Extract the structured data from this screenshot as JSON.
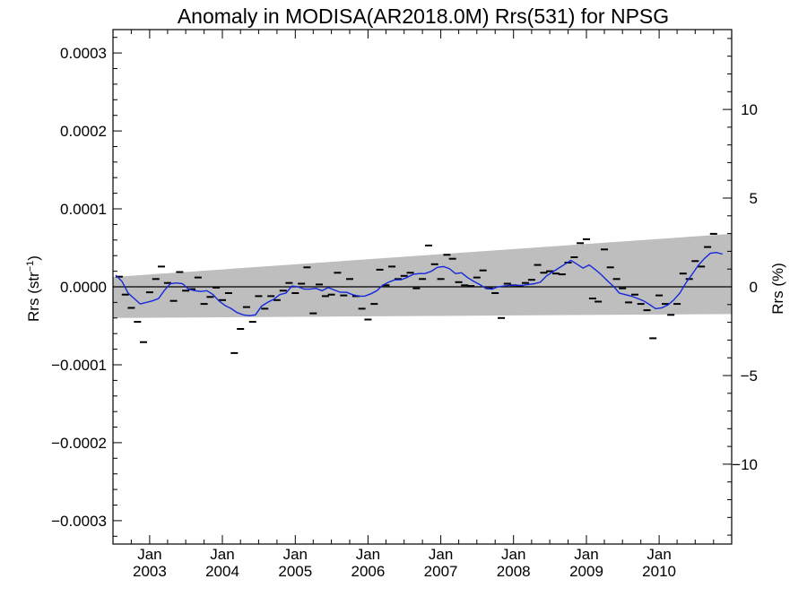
{
  "chart_data": {
    "type": "scatter",
    "title": "Anomaly in MODISA(AR2018.0M) Rrs(531) for NPSG",
    "ylabel_left_main": "Rrs (str",
    "ylabel_left_sup": "−1",
    "ylabel_left_close": ")",
    "ylabel_right": "Rrs (%)",
    "x_range": [
      "2002-07-01",
      "2010-12-31"
    ],
    "ylim_left": [
      -0.00033,
      0.00033
    ],
    "ylim_right": [
      -14.5,
      14.5
    ],
    "x_ticks": [
      {
        "date": "2003-01-01",
        "month": "Jan",
        "year": "2003"
      },
      {
        "date": "2004-01-01",
        "month": "Jan",
        "year": "2004"
      },
      {
        "date": "2005-01-01",
        "month": "Jan",
        "year": "2005"
      },
      {
        "date": "2006-01-01",
        "month": "Jan",
        "year": "2006"
      },
      {
        "date": "2007-01-01",
        "month": "Jan",
        "year": "2007"
      },
      {
        "date": "2008-01-01",
        "month": "Jan",
        "year": "2008"
      },
      {
        "date": "2009-01-01",
        "month": "Jan",
        "year": "2009"
      },
      {
        "date": "2010-01-01",
        "month": "Jan",
        "year": "2010"
      }
    ],
    "y_ticks_left": [
      {
        "value": 0.0003,
        "label": "0.0003"
      },
      {
        "value": 0.0002,
        "label": "0.0002"
      },
      {
        "value": 0.0001,
        "label": "0.0001"
      },
      {
        "value": 0.0,
        "label": "0.0000"
      },
      {
        "value": -0.0001,
        "label": "−0.0001"
      },
      {
        "value": -0.0002,
        "label": "−0.0002"
      },
      {
        "value": -0.0003,
        "label": "−0.0003"
      }
    ],
    "y_ticks_right": [
      {
        "value": 10,
        "label": "10"
      },
      {
        "value": 5,
        "label": "5"
      },
      {
        "value": 0,
        "label": "0"
      },
      {
        "value": -5,
        "label": "−5"
      },
      {
        "value": -10,
        "label": "−10"
      }
    ],
    "uncertainty_band": {
      "start": {
        "date": "2002-07-01",
        "upper": 1.25e-05,
        "lower": -4e-05
      },
      "end": {
        "date": "2010-12-31",
        "upper": 6.8e-05,
        "lower": -3.5e-05
      },
      "color": "#bebebe"
    },
    "zero_line": 0.0,
    "series": [
      {
        "kind": "monthly anomaly",
        "marker": "dash",
        "color": "#000000",
        "points": [
          [
            "2002-08-01",
            1.3e-05
          ],
          [
            "2002-09-01",
            -1e-05
          ],
          [
            "2002-10-01",
            -2.7e-05
          ],
          [
            "2002-11-01",
            -4.5e-05
          ],
          [
            "2002-12-01",
            -7.1e-05
          ],
          [
            "2003-01-01",
            -7e-06
          ],
          [
            "2003-02-01",
            1e-05
          ],
          [
            "2003-03-01",
            2.6e-05
          ],
          [
            "2003-04-01",
            5e-06
          ],
          [
            "2003-05-01",
            -1.8e-05
          ],
          [
            "2003-06-01",
            1.9e-05
          ],
          [
            "2003-07-01",
            -5e-06
          ],
          [
            "2003-08-01",
            -3e-06
          ],
          [
            "2003-09-01",
            1.2e-05
          ],
          [
            "2003-10-01",
            -2.2e-05
          ],
          [
            "2003-11-01",
            -1.3e-05
          ],
          [
            "2003-12-01",
            -1e-06
          ],
          [
            "2004-01-01",
            -1.7e-05
          ],
          [
            "2004-02-01",
            -8e-06
          ],
          [
            "2004-03-01",
            -8.5e-05
          ],
          [
            "2004-04-01",
            -5.4e-05
          ],
          [
            "2004-05-01",
            -2.6e-05
          ],
          [
            "2004-06-01",
            -4.5e-05
          ],
          [
            "2004-07-01",
            -1.2e-05
          ],
          [
            "2004-08-01",
            -2.8e-05
          ],
          [
            "2004-09-01",
            -1.2e-05
          ],
          [
            "2004-10-01",
            -1.7e-05
          ],
          [
            "2004-11-01",
            -5e-06
          ],
          [
            "2004-12-01",
            5e-06
          ],
          [
            "2005-01-01",
            -8e-06
          ],
          [
            "2005-02-01",
            4e-06
          ],
          [
            "2005-03-01",
            2.5e-05
          ],
          [
            "2005-04-01",
            -3.4e-05
          ],
          [
            "2005-05-01",
            3e-06
          ],
          [
            "2005-06-01",
            -1.2e-05
          ],
          [
            "2005-07-01",
            -1e-05
          ],
          [
            "2005-08-01",
            1.8e-05
          ],
          [
            "2005-09-01",
            -1.1e-05
          ],
          [
            "2005-10-01",
            1e-05
          ],
          [
            "2005-11-01",
            -1.2e-05
          ],
          [
            "2005-12-01",
            -2.8e-05
          ],
          [
            "2006-01-01",
            -4.2e-05
          ],
          [
            "2006-02-01",
            -2.2e-05
          ],
          [
            "2006-03-01",
            2.2e-05
          ],
          [
            "2006-04-01",
            2e-06
          ],
          [
            "2006-05-01",
            2.6e-05
          ],
          [
            "2006-06-01",
            1e-05
          ],
          [
            "2006-07-01",
            1.4e-05
          ],
          [
            "2006-08-01",
            1.8e-05
          ],
          [
            "2006-09-01",
            -2e-06
          ],
          [
            "2006-10-01",
            1e-05
          ],
          [
            "2006-11-01",
            5.3e-05
          ],
          [
            "2006-12-01",
            2.9e-05
          ],
          [
            "2007-01-01",
            1e-05
          ],
          [
            "2007-02-01",
            4.1e-05
          ],
          [
            "2007-03-01",
            3.6e-05
          ],
          [
            "2007-04-01",
            6e-06
          ],
          [
            "2007-05-01",
            2e-06
          ],
          [
            "2007-06-01",
            1e-06
          ],
          [
            "2007-07-01",
            1.2e-05
          ],
          [
            "2007-08-01",
            2.1e-05
          ],
          [
            "2007-09-01",
            -2e-06
          ],
          [
            "2007-10-01",
            -8e-06
          ],
          [
            "2007-11-01",
            -4e-05
          ],
          [
            "2007-12-01",
            4e-06
          ],
          [
            "2008-01-01",
            2e-06
          ],
          [
            "2008-02-01",
            1e-06
          ],
          [
            "2008-03-01",
            5e-06
          ],
          [
            "2008-04-01",
            9e-06
          ],
          [
            "2008-05-01",
            2.8e-05
          ],
          [
            "2008-06-01",
            1.8e-05
          ],
          [
            "2008-07-01",
            2e-05
          ],
          [
            "2008-08-01",
            1.7e-05
          ],
          [
            "2008-09-01",
            1.6e-05
          ],
          [
            "2008-10-01",
            3.1e-05
          ],
          [
            "2008-11-01",
            3.8e-05
          ],
          [
            "2008-12-01",
            5.6e-05
          ],
          [
            "2009-01-01",
            6.1e-05
          ],
          [
            "2009-02-01",
            -1.5e-05
          ],
          [
            "2009-03-01",
            -1.9e-05
          ],
          [
            "2009-04-01",
            4.8e-05
          ],
          [
            "2009-05-01",
            2.5e-05
          ],
          [
            "2009-06-01",
            1e-05
          ],
          [
            "2009-07-01",
            -2e-06
          ],
          [
            "2009-08-01",
            -2e-05
          ],
          [
            "2009-09-01",
            -1e-05
          ],
          [
            "2009-10-01",
            -2.2e-05
          ],
          [
            "2009-11-01",
            -3e-05
          ],
          [
            "2009-12-01",
            -6.6e-05
          ],
          [
            "2010-01-01",
            -1.1e-05
          ],
          [
            "2010-02-01",
            -2.2e-05
          ],
          [
            "2010-03-01",
            -3.6e-05
          ],
          [
            "2010-04-01",
            -2.2e-05
          ],
          [
            "2010-05-01",
            1.7e-05
          ],
          [
            "2010-06-01",
            1e-05
          ],
          [
            "2010-07-01",
            3.3e-05
          ],
          [
            "2010-08-01",
            2.6e-05
          ],
          [
            "2010-09-01",
            5.1e-05
          ],
          [
            "2010-10-01",
            6.8e-05
          ]
        ]
      },
      {
        "kind": "smoothed anomaly",
        "marker": "line",
        "color": "#1428dc",
        "points": [
          [
            "2002-07-15",
            1.5e-05
          ],
          [
            "2002-08-15",
            7e-06
          ],
          [
            "2002-09-15",
            -8e-06
          ],
          [
            "2002-10-15",
            -1.5e-05
          ],
          [
            "2002-11-15",
            -2.2e-05
          ],
          [
            "2002-12-15",
            -2e-05
          ],
          [
            "2003-01-15",
            -1.8e-05
          ],
          [
            "2003-02-15",
            -1.5e-05
          ],
          [
            "2003-03-15",
            -5e-06
          ],
          [
            "2003-04-15",
            4e-06
          ],
          [
            "2003-05-15",
            5e-06
          ],
          [
            "2003-06-15",
            4e-06
          ],
          [
            "2003-07-15",
            -3e-06
          ],
          [
            "2003-08-15",
            -5e-06
          ],
          [
            "2003-09-15",
            -6e-06
          ],
          [
            "2003-10-15",
            -5e-06
          ],
          [
            "2003-11-15",
            -1e-05
          ],
          [
            "2003-12-15",
            -1.8e-05
          ],
          [
            "2004-01-15",
            -2.4e-05
          ],
          [
            "2004-02-15",
            -2.8e-05
          ],
          [
            "2004-03-15",
            -3.3e-05
          ],
          [
            "2004-04-15",
            -3.6e-05
          ],
          [
            "2004-05-15",
            -3.7e-05
          ],
          [
            "2004-06-15",
            -3.6e-05
          ],
          [
            "2004-07-15",
            -2.5e-05
          ],
          [
            "2004-08-15",
            -2e-05
          ],
          [
            "2004-09-15",
            -1.6e-05
          ],
          [
            "2004-10-15",
            -1e-05
          ],
          [
            "2004-11-15",
            -8e-06
          ],
          [
            "2004-12-15",
            1e-06
          ],
          [
            "2005-01-15",
            0.0
          ],
          [
            "2005-02-15",
            -3e-06
          ],
          [
            "2005-03-15",
            -3e-06
          ],
          [
            "2005-04-15",
            -2e-06
          ],
          [
            "2005-05-15",
            -5e-06
          ],
          [
            "2005-06-15",
            -1e-06
          ],
          [
            "2005-07-15",
            -4e-06
          ],
          [
            "2005-08-15",
            -7e-06
          ],
          [
            "2005-09-15",
            -7e-06
          ],
          [
            "2005-10-15",
            -1e-05
          ],
          [
            "2005-11-15",
            -1.2e-05
          ],
          [
            "2005-12-15",
            -1.2e-05
          ],
          [
            "2006-01-15",
            -9e-06
          ],
          [
            "2006-02-15",
            -5e-06
          ],
          [
            "2006-03-15",
            2e-06
          ],
          [
            "2006-04-15",
            6e-06
          ],
          [
            "2006-05-15",
            9e-06
          ],
          [
            "2006-06-15",
            9e-06
          ],
          [
            "2006-07-15",
            1.2e-05
          ],
          [
            "2006-08-15",
            1.6e-05
          ],
          [
            "2006-09-15",
            1.7e-05
          ],
          [
            "2006-10-15",
            1.7e-05
          ],
          [
            "2006-11-15",
            2e-05
          ],
          [
            "2006-12-15",
            2.5e-05
          ],
          [
            "2007-01-15",
            2.6e-05
          ],
          [
            "2007-02-15",
            2.3e-05
          ],
          [
            "2007-03-15",
            1.7e-05
          ],
          [
            "2007-04-15",
            1.8e-05
          ],
          [
            "2007-05-15",
            1.2e-05
          ],
          [
            "2007-06-15",
            7e-06
          ],
          [
            "2007-07-15",
            3e-06
          ],
          [
            "2007-08-15",
            -2e-06
          ],
          [
            "2007-09-15",
            -3e-06
          ],
          [
            "2007-10-15",
            0.0
          ],
          [
            "2007-11-15",
            1e-06
          ],
          [
            "2007-12-15",
            2e-06
          ],
          [
            "2008-01-15",
            2e-06
          ],
          [
            "2008-02-15",
            2e-06
          ],
          [
            "2008-03-15",
            3e-06
          ],
          [
            "2008-04-15",
            4e-06
          ],
          [
            "2008-05-15",
            6e-06
          ],
          [
            "2008-06-15",
            1.4e-05
          ],
          [
            "2008-07-15",
            1.9e-05
          ],
          [
            "2008-08-15",
            2.4e-05
          ],
          [
            "2008-09-15",
            2.9e-05
          ],
          [
            "2008-10-15",
            3.4e-05
          ],
          [
            "2008-11-15",
            2.9e-05
          ],
          [
            "2008-12-15",
            2.4e-05
          ],
          [
            "2009-01-15",
            2.8e-05
          ],
          [
            "2009-02-15",
            2.2e-05
          ],
          [
            "2009-03-15",
            1.6e-05
          ],
          [
            "2009-04-15",
            8e-06
          ],
          [
            "2009-05-15",
            1e-06
          ],
          [
            "2009-06-15",
            -8e-06
          ],
          [
            "2009-07-15",
            -1e-05
          ],
          [
            "2009-08-15",
            -1.2e-05
          ],
          [
            "2009-09-15",
            -1.5e-05
          ],
          [
            "2009-10-15",
            -1.8e-05
          ],
          [
            "2009-11-15",
            -2.3e-05
          ],
          [
            "2009-12-15",
            -2.8e-05
          ],
          [
            "2010-01-15",
            -2.7e-05
          ],
          [
            "2010-02-15",
            -2.3e-05
          ],
          [
            "2010-03-15",
            -1.7e-05
          ],
          [
            "2010-04-15",
            -8e-06
          ],
          [
            "2010-05-15",
            5e-06
          ],
          [
            "2010-06-15",
            1.6e-05
          ],
          [
            "2010-07-15",
            2.7e-05
          ],
          [
            "2010-08-15",
            3.6e-05
          ],
          [
            "2010-09-15",
            4.3e-05
          ],
          [
            "2010-10-15",
            4.4e-05
          ],
          [
            "2010-11-15",
            4.2e-05
          ]
        ]
      }
    ]
  }
}
